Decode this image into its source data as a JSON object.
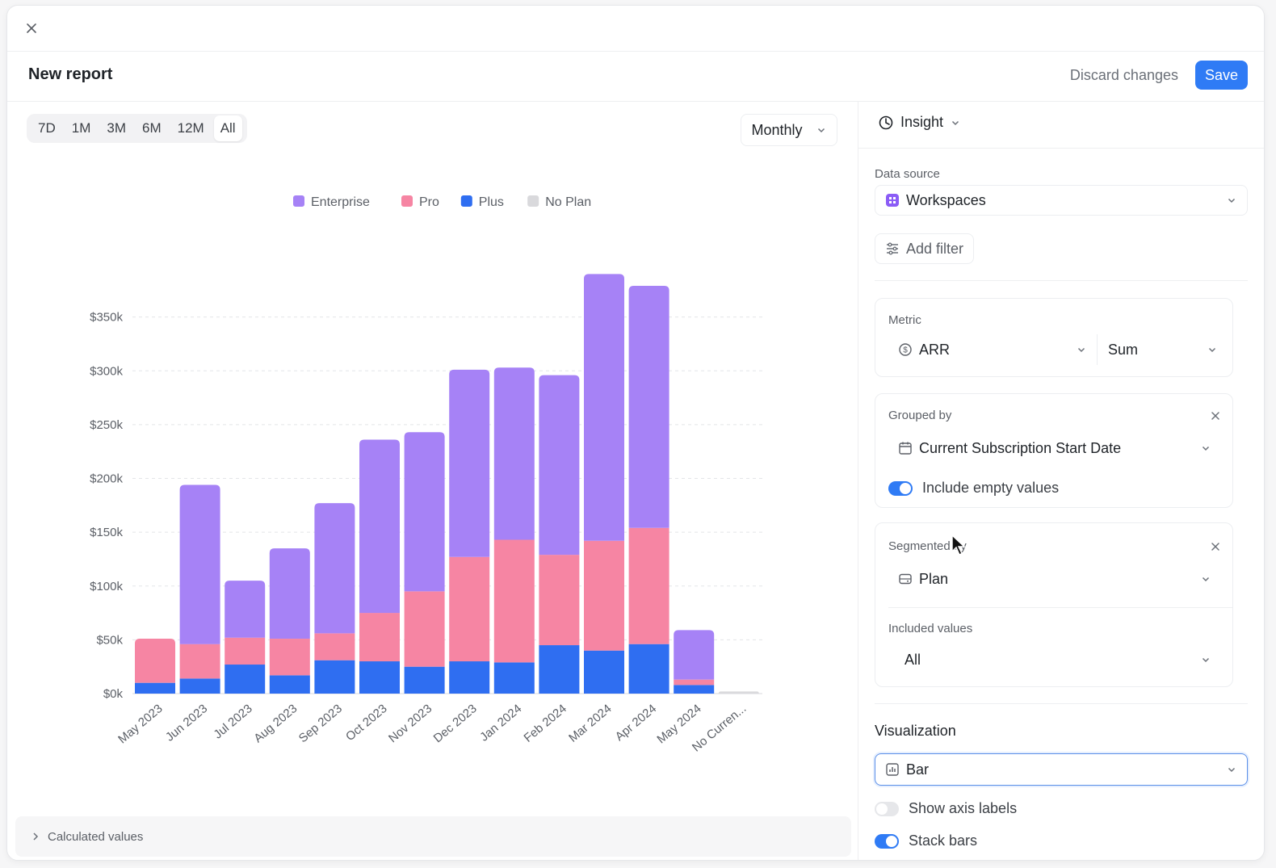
{
  "header": {
    "title": "New report",
    "discard_label": "Discard changes",
    "save_label": "Save"
  },
  "colors": {
    "enterprise": "#a682f6",
    "pro": "#f685a3",
    "plus": "#2f6ef1",
    "no_plan": "#d9d9dc",
    "accent": "#2f7bf5"
  },
  "ranges": [
    "7D",
    "1M",
    "3M",
    "6M",
    "12M",
    "All"
  ],
  "active_range": "All",
  "period": {
    "value": "Monthly"
  },
  "chart_data": {
    "type": "bar",
    "stacked": true,
    "title": "",
    "xlabel": "",
    "ylabel": "",
    "categories": [
      "May 2023",
      "Jun 2023",
      "Jul 2023",
      "Aug 2023",
      "Sep 2023",
      "Oct 2023",
      "Nov 2023",
      "Dec 2023",
      "Jan 2024",
      "Feb 2024",
      "Mar 2024",
      "Apr 2024",
      "May 2024",
      "No Curren..."
    ],
    "series": [
      {
        "name": "Plus",
        "values": [
          10,
          14,
          27,
          17,
          31,
          30,
          25,
          30,
          29,
          45,
          40,
          46,
          8,
          0
        ]
      },
      {
        "name": "Pro",
        "values": [
          41,
          32,
          25,
          34,
          25,
          45,
          70,
          97,
          114,
          84,
          102,
          108,
          5,
          0
        ]
      },
      {
        "name": "Enterprise",
        "values": [
          0,
          148,
          53,
          84,
          121,
          161,
          148,
          174,
          160,
          167,
          248,
          225,
          46,
          0
        ]
      },
      {
        "name": "No Plan",
        "values": [
          0,
          0,
          0,
          0,
          0,
          0,
          0,
          0,
          0,
          0,
          0,
          0,
          0,
          2
        ]
      }
    ],
    "legend_order": [
      "Enterprise",
      "Pro",
      "Plus",
      "No Plan"
    ],
    "yticks": [
      "$0k",
      "$50k",
      "$100k",
      "$150k",
      "$200k",
      "$250k",
      "$300k",
      "$350k"
    ],
    "ylim": [
      0,
      400
    ],
    "legend_position": "top-center",
    "grid": true
  },
  "calculated_values": {
    "label": "Calculated values"
  },
  "sidebar": {
    "insight_label": "Insight",
    "data_source": {
      "label": "Data source",
      "value": "Workspaces"
    },
    "add_filter_label": "Add filter",
    "metric": {
      "label": "Metric",
      "field": "ARR",
      "aggregation": "Sum"
    },
    "grouped_by": {
      "label": "Grouped by",
      "value": "Current Subscription Start Date",
      "include_empty_label": "Include empty values"
    },
    "segmented_by": {
      "label": "Segmented by",
      "value": "Plan",
      "included_label": "Included values",
      "included_value": "All"
    },
    "visualization": {
      "label": "Visualization",
      "value": "Bar",
      "show_axis_labels": "Show axis labels",
      "stack_bars": "Stack bars"
    }
  }
}
